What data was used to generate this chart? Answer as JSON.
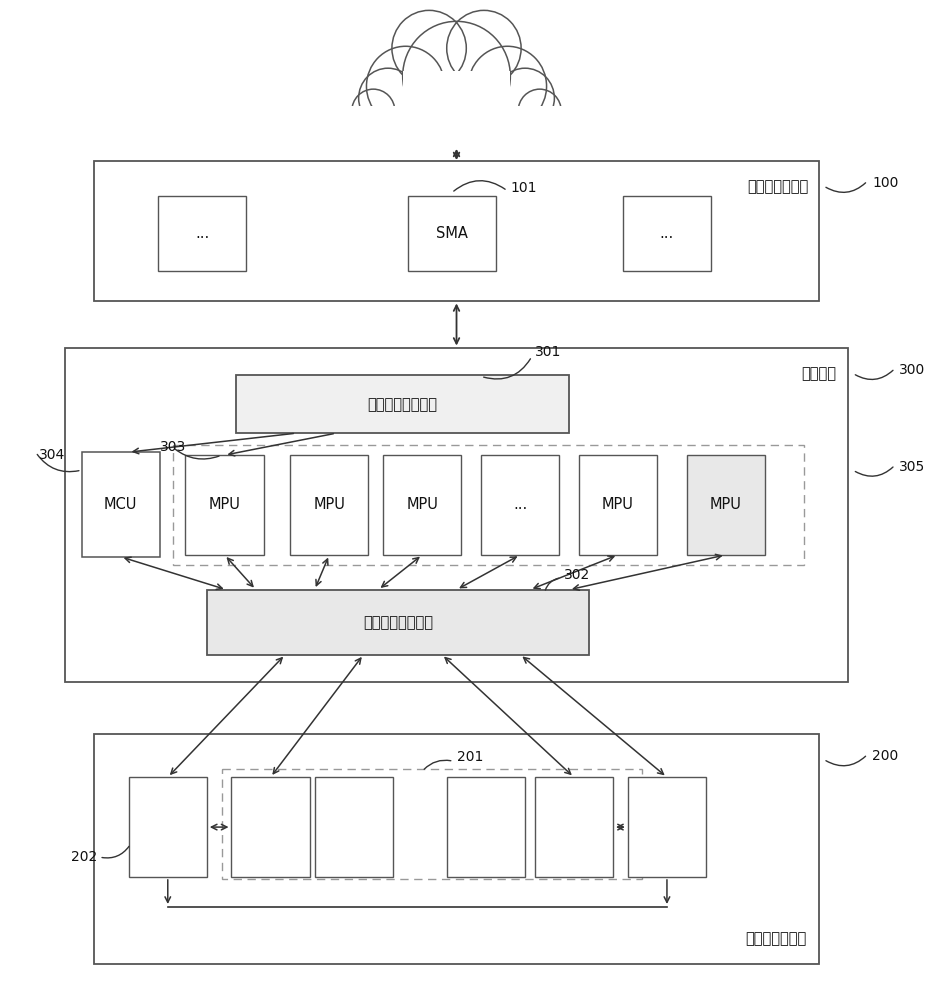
{
  "bg_color": "#ffffff",
  "upper_module_label": "上车体电器模块",
  "upper_module_ref": "100",
  "sma_label": "SMA",
  "sma_ref": "101",
  "gateway_label": "智能网关",
  "gateway_ref": "300",
  "gw1_label": "第一网关芯片模块",
  "gw1_ref": "301",
  "gw2_label": "第二网关芯片模块",
  "gw2_ref": "302",
  "mcu_label": "MCU",
  "mcu_ref": "304",
  "mpu_ref": "303",
  "mpu_group_ref": "305",
  "lower_module_label": "下车体电器模块",
  "lower_module_ref": "200",
  "lower_inner_ref": "201",
  "lower_mcu_ref": "202",
  "ec": "#555555",
  "arrow_color": "#333333"
}
